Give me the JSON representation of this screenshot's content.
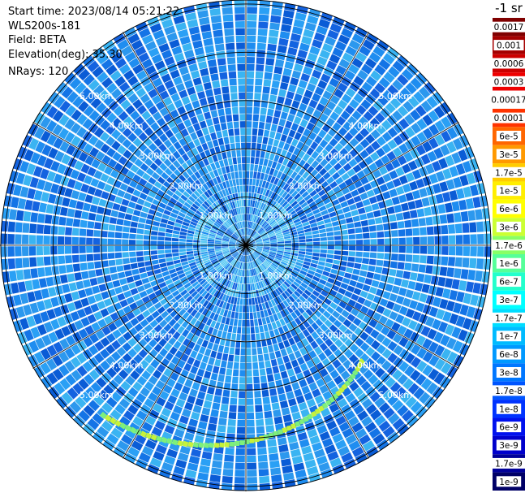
{
  "header": {
    "start_time": "Start time: 2023/08/14 05:21:22",
    "instrument": "WLS200s-181",
    "field": "Field: BETA",
    "elevation": "Elevation(deg): 35.30",
    "nrays": "NRays: 120"
  },
  "chart_data": {
    "type": "heatmap",
    "projection": "polar-ppi",
    "field": "BETA",
    "nrays": 120,
    "range_rings_km": [
      1,
      2,
      3,
      4,
      5
    ],
    "range_labels": [
      "1.00km",
      "2.00km",
      "3.00km",
      "4.00km",
      "5.00km"
    ],
    "max_range_km": 5.0,
    "background_value": "~1e-7",
    "features": [
      {
        "name": "high-backscatter arc",
        "azimuth_deg": [
          135,
          220
        ],
        "range_km": [
          3.4,
          4.6
        ],
        "value": "~1.7e-6"
      }
    ],
    "colorbar": {
      "unit_label": "-1 sr",
      "ticks": [
        "0.0017",
        "0.001",
        "0.0006",
        "0.0003",
        "0.00017",
        "0.0001",
        "6e-5",
        "3e-5",
        "1.7e-5",
        "1e-5",
        "6e-6",
        "3e-6",
        "1.7e-6",
        "1e-6",
        "6e-7",
        "3e-7",
        "1.7e-7",
        "1e-7",
        "6e-8",
        "3e-8",
        "1.7e-8",
        "1e-8",
        "6e-9",
        "3e-9",
        "1.7e-9",
        "1e-9"
      ],
      "colors": [
        "#7f0000",
        "#a50000",
        "#cc0000",
        "#ee0000",
        "#ffffff",
        "#ff3300",
        "#ff6600",
        "#ff9900",
        "#ffcc00",
        "#ffee00",
        "#ffff00",
        "#ccff33",
        "#88ff66",
        "#55ff99",
        "#22ffcc",
        "#00ffff",
        "#00ddff",
        "#00bbff",
        "#0099ff",
        "#0077ff",
        "#0055ff",
        "#0033ff",
        "#0011ee",
        "#0000cc",
        "#000099",
        "#000066"
      ]
    }
  }
}
